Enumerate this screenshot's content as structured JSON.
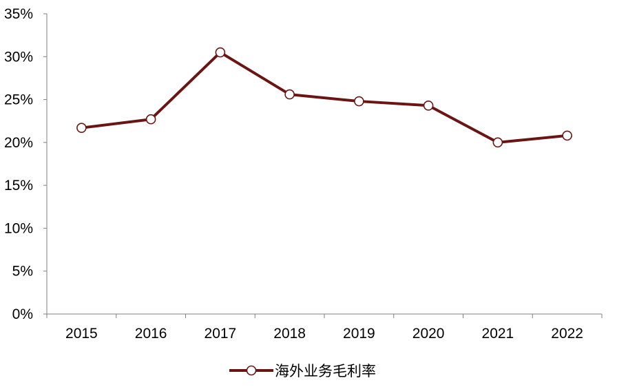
{
  "chart_data": {
    "type": "line",
    "categories": [
      "2015",
      "2016",
      "2017",
      "2018",
      "2019",
      "2020",
      "2021",
      "2022"
    ],
    "series": [
      {
        "name": "海外业务毛利率",
        "values": [
          21.7,
          22.7,
          30.5,
          25.6,
          24.8,
          24.3,
          20.0,
          20.8
        ],
        "color": "#6b1414"
      }
    ],
    "y_ticks": [
      "0%",
      "5%",
      "10%",
      "15%",
      "20%",
      "25%",
      "30%",
      "35%"
    ],
    "ylim": [
      0,
      35
    ],
    "y_unit": "%",
    "grid": false,
    "legend_position": "bottom-center",
    "marker": "hollow-circle"
  }
}
